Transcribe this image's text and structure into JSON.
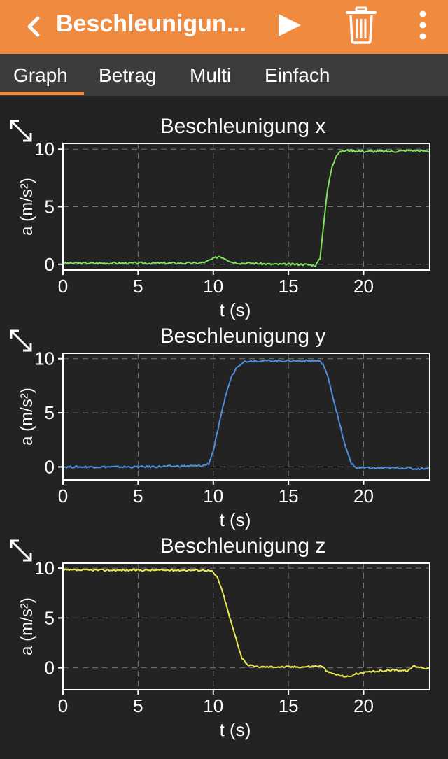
{
  "appbar": {
    "title": "Beschleunigun...",
    "colors": {
      "background": "#f08a3e",
      "foreground": "#ffffff"
    },
    "icons": [
      "back-chevron-icon",
      "play-icon",
      "trash-icon",
      "more-vert-icon"
    ]
  },
  "tabs": [
    {
      "label": "Graph",
      "active": true
    },
    {
      "label": "Betrag",
      "active": false
    },
    {
      "label": "Multi",
      "active": false
    },
    {
      "label": "Einfach",
      "active": false
    }
  ],
  "chart_data": [
    {
      "type": "line",
      "title": "Beschleunigung x",
      "xlabel": "t (s)",
      "ylabel": "a (m/s²)",
      "xlim": [
        0,
        24.4
      ],
      "ylim": [
        -0.5,
        10.5
      ],
      "xticks": [
        0,
        5,
        10,
        15,
        20
      ],
      "yticks": [
        0,
        5,
        10
      ],
      "grid": true,
      "color": "#7fe35c",
      "series": [
        {
          "x": [
            0,
            5,
            9,
            9.5,
            10,
            10.4,
            10.8,
            11.2,
            11.8,
            12.5,
            14,
            16,
            16.8,
            17.1,
            17.3,
            17.6,
            17.9,
            18.2,
            18.5,
            19,
            20,
            22,
            23.2,
            24.4
          ],
          "y": [
            0.1,
            0.1,
            0.1,
            0.2,
            0.5,
            0.7,
            0.5,
            0.2,
            0.1,
            0.1,
            0.0,
            0.0,
            -0.1,
            0.5,
            3.0,
            6.5,
            8.5,
            9.5,
            9.8,
            9.9,
            9.8,
            9.8,
            9.9,
            9.8
          ]
        }
      ]
    },
    {
      "type": "line",
      "title": "Beschleunigung y",
      "xlabel": "t (s)",
      "ylabel": "a (m/s²)",
      "xlim": [
        0,
        24.4
      ],
      "ylim": [
        -1.2,
        10.5
      ],
      "xticks": [
        0,
        5,
        10,
        15,
        20
      ],
      "yticks": [
        0,
        5,
        10
      ],
      "grid": true,
      "color": "#4d8fe0",
      "series": [
        {
          "x": [
            0,
            5,
            9.3,
            9.7,
            10,
            10.4,
            10.8,
            11.2,
            11.6,
            12,
            12.5,
            14,
            16,
            17,
            17.3,
            17.7,
            18,
            18.4,
            18.8,
            19.2,
            19.5,
            20,
            22,
            23,
            23.2,
            24.4
          ],
          "y": [
            0.0,
            0.0,
            0.1,
            0.3,
            1.5,
            4.0,
            6.5,
            8.3,
            9.3,
            9.7,
            9.8,
            9.8,
            9.8,
            9.8,
            9.5,
            8.0,
            6.2,
            4.0,
            1.8,
            0.3,
            -0.1,
            -0.1,
            -0.1,
            -0.1,
            -0.2,
            -0.1
          ]
        }
      ]
    },
    {
      "type": "line",
      "title": "Beschleunigung z",
      "xlabel": "t (s)",
      "ylabel": "a (m/s²)",
      "xlim": [
        0,
        24.4
      ],
      "ylim": [
        -2.2,
        10.5
      ],
      "xticks": [
        0,
        5,
        10,
        15,
        20
      ],
      "yticks": [
        0,
        5,
        10
      ],
      "grid": true,
      "color": "#e8e84e",
      "series": [
        {
          "x": [
            0,
            5,
            9.5,
            9.9,
            10.3,
            10.7,
            11.1,
            11.5,
            11.9,
            12.3,
            12.8,
            14,
            16,
            17.2,
            17.6,
            18,
            18.5,
            19,
            19.5,
            20.5,
            22,
            23,
            23.3,
            24.4
          ],
          "y": [
            9.8,
            9.8,
            9.8,
            9.7,
            9.0,
            7.2,
            5.0,
            3.0,
            1.0,
            0.3,
            0.1,
            0.1,
            0.1,
            0.2,
            -0.4,
            -0.6,
            -0.8,
            -0.9,
            -0.6,
            -0.4,
            -0.2,
            -0.3,
            0.2,
            -0.1
          ]
        }
      ]
    }
  ]
}
